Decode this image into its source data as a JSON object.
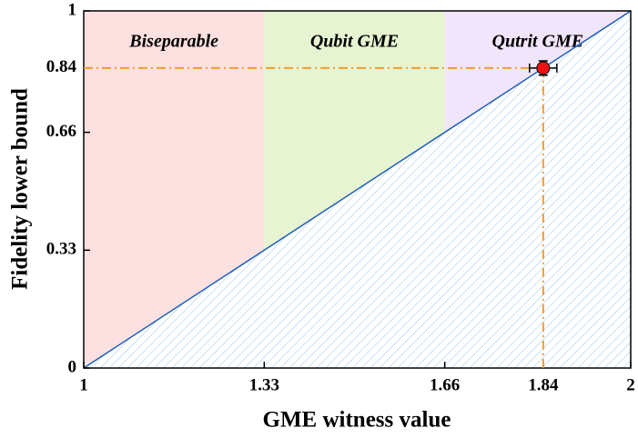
{
  "chart_data": {
    "type": "scatter",
    "xlabel": "GME witness value",
    "ylabel": "Fidelity lower bound",
    "xlim": [
      1,
      2
    ],
    "xticks": [
      1,
      1.33,
      1.66,
      1.84,
      2
    ],
    "ylim": [
      0,
      1
    ],
    "yticks": [
      0,
      0.33,
      0.66,
      0.84,
      1
    ],
    "regions": [
      {
        "name": "Biseparable",
        "x": [
          1,
          1.33
        ],
        "color": "#fde1e1"
      },
      {
        "name": "Qubit GME",
        "x": [
          1.33,
          1.66
        ],
        "color": "#e7f4d2"
      },
      {
        "name": "Qutrit GME",
        "x": [
          1.66,
          2
        ],
        "color": "#f1e5fb"
      }
    ],
    "line_color": "#1f5fbf",
    "guide_color": "#f39c2c",
    "series": [
      {
        "x": [
          1.84
        ],
        "values": [
          0.84
        ],
        "xerr": [
          0.025
        ],
        "yerr": [
          0.02
        ],
        "color": "#ee1111"
      }
    ]
  }
}
